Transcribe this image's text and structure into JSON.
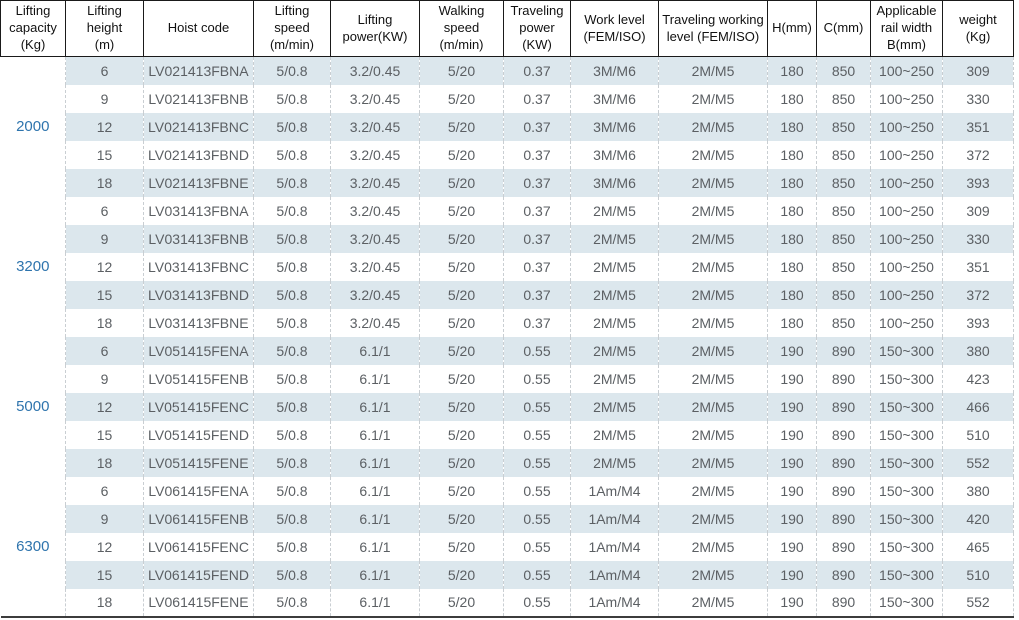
{
  "colors": {
    "row_stripe": "#dce7ed",
    "group_label_blue": "#2e74ad",
    "body_text_gray": "#5b5f63"
  },
  "table": {
    "columns": [
      {
        "key": "capacity",
        "label": "Lifting\ncapacity\n(Kg)"
      },
      {
        "key": "height",
        "label": "Lifting\nheight\n(m)"
      },
      {
        "key": "code",
        "label": "Hoist code"
      },
      {
        "key": "lift-speed",
        "label": "Lifting\nspeed\n(m/min)"
      },
      {
        "key": "lift-power",
        "label": "Lifting\npower(KW)"
      },
      {
        "key": "walk-speed",
        "label": "Walking\nspeed\n(m/min)"
      },
      {
        "key": "travel-power",
        "label": "Traveling\npower\n(KW)"
      },
      {
        "key": "work-level",
        "label": "Work level\n(FEM/ISO)"
      },
      {
        "key": "travel-level",
        "label": "Traveling working\nlevel (FEM/ISO)"
      },
      {
        "key": "h-mm",
        "label": "H(mm)"
      },
      {
        "key": "c-mm",
        "label": "C(mm)"
      },
      {
        "key": "rail-width",
        "label": "Applicable\nrail width\nB(mm)"
      },
      {
        "key": "weight",
        "label": "weight\n(Kg)"
      }
    ],
    "groups": [
      {
        "capacity": "2000",
        "rows": [
          [
            "6",
            "LV021413FBNA",
            "5/0.8",
            "3.2/0.45",
            "5/20",
            "0.37",
            "3M/M6",
            "2M/M5",
            "180",
            "850",
            "100~250",
            "309"
          ],
          [
            "9",
            "LV021413FBNB",
            "5/0.8",
            "3.2/0.45",
            "5/20",
            "0.37",
            "3M/M6",
            "2M/M5",
            "180",
            "850",
            "100~250",
            "330"
          ],
          [
            "12",
            "LV021413FBNC",
            "5/0.8",
            "3.2/0.45",
            "5/20",
            "0.37",
            "3M/M6",
            "2M/M5",
            "180",
            "850",
            "100~250",
            "351"
          ],
          [
            "15",
            "LV021413FBND",
            "5/0.8",
            "3.2/0.45",
            "5/20",
            "0.37",
            "3M/M6",
            "2M/M5",
            "180",
            "850",
            "100~250",
            "372"
          ],
          [
            "18",
            "LV021413FBNE",
            "5/0.8",
            "3.2/0.45",
            "5/20",
            "0.37",
            "3M/M6",
            "2M/M5",
            "180",
            "850",
            "100~250",
            "393"
          ]
        ]
      },
      {
        "capacity": "3200",
        "rows": [
          [
            "6",
            "LV031413FBNA",
            "5/0.8",
            "3.2/0.45",
            "5/20",
            "0.37",
            "2M/M5",
            "2M/M5",
            "180",
            "850",
            "100~250",
            "309"
          ],
          [
            "9",
            "LV031413FBNB",
            "5/0.8",
            "3.2/0.45",
            "5/20",
            "0.37",
            "2M/M5",
            "2M/M5",
            "180",
            "850",
            "100~250",
            "330"
          ],
          [
            "12",
            "LV031413FBNC",
            "5/0.8",
            "3.2/0.45",
            "5/20",
            "0.37",
            "2M/M5",
            "2M/M5",
            "180",
            "850",
            "100~250",
            "351"
          ],
          [
            "15",
            "LV031413FBND",
            "5/0.8",
            "3.2/0.45",
            "5/20",
            "0.37",
            "2M/M5",
            "2M/M5",
            "180",
            "850",
            "100~250",
            "372"
          ],
          [
            "18",
            "LV031413FBNE",
            "5/0.8",
            "3.2/0.45",
            "5/20",
            "0.37",
            "2M/M5",
            "2M/M5",
            "180",
            "850",
            "100~250",
            "393"
          ]
        ]
      },
      {
        "capacity": "5000",
        "rows": [
          [
            "6",
            "LV051415FENA",
            "5/0.8",
            "6.1/1",
            "5/20",
            "0.55",
            "2M/M5",
            "2M/M5",
            "190",
            "890",
            "150~300",
            "380"
          ],
          [
            "9",
            "LV051415FENB",
            "5/0.8",
            "6.1/1",
            "5/20",
            "0.55",
            "2M/M5",
            "2M/M5",
            "190",
            "890",
            "150~300",
            "423"
          ],
          [
            "12",
            "LV051415FENC",
            "5/0.8",
            "6.1/1",
            "5/20",
            "0.55",
            "2M/M5",
            "2M/M5",
            "190",
            "890",
            "150~300",
            "466"
          ],
          [
            "15",
            "LV051415FEND",
            "5/0.8",
            "6.1/1",
            "5/20",
            "0.55",
            "2M/M5",
            "2M/M5",
            "190",
            "890",
            "150~300",
            "510"
          ],
          [
            "18",
            "LV051415FENE",
            "5/0.8",
            "6.1/1",
            "5/20",
            "0.55",
            "2M/M5",
            "2M/M5",
            "190",
            "890",
            "150~300",
            "552"
          ]
        ]
      },
      {
        "capacity": "6300",
        "rows": [
          [
            "6",
            "LV061415FENA",
            "5/0.8",
            "6.1/1",
            "5/20",
            "0.55",
            "1Am/M4",
            "2M/M5",
            "190",
            "890",
            "150~300",
            "380"
          ],
          [
            "9",
            "LV061415FENB",
            "5/0.8",
            "6.1/1",
            "5/20",
            "0.55",
            "1Am/M4",
            "2M/M5",
            "190",
            "890",
            "150~300",
            "420"
          ],
          [
            "12",
            "LV061415FENC",
            "5/0.8",
            "6.1/1",
            "5/20",
            "0.55",
            "1Am/M4",
            "2M/M5",
            "190",
            "890",
            "150~300",
            "465"
          ],
          [
            "15",
            "LV061415FEND",
            "5/0.8",
            "6.1/1",
            "5/20",
            "0.55",
            "1Am/M4",
            "2M/M5",
            "190",
            "890",
            "150~300",
            "510"
          ],
          [
            "18",
            "LV061415FENE",
            "5/0.8",
            "6.1/1",
            "5/20",
            "0.55",
            "1Am/M4",
            "2M/M5",
            "190",
            "890",
            "150~300",
            "552"
          ]
        ]
      }
    ]
  }
}
